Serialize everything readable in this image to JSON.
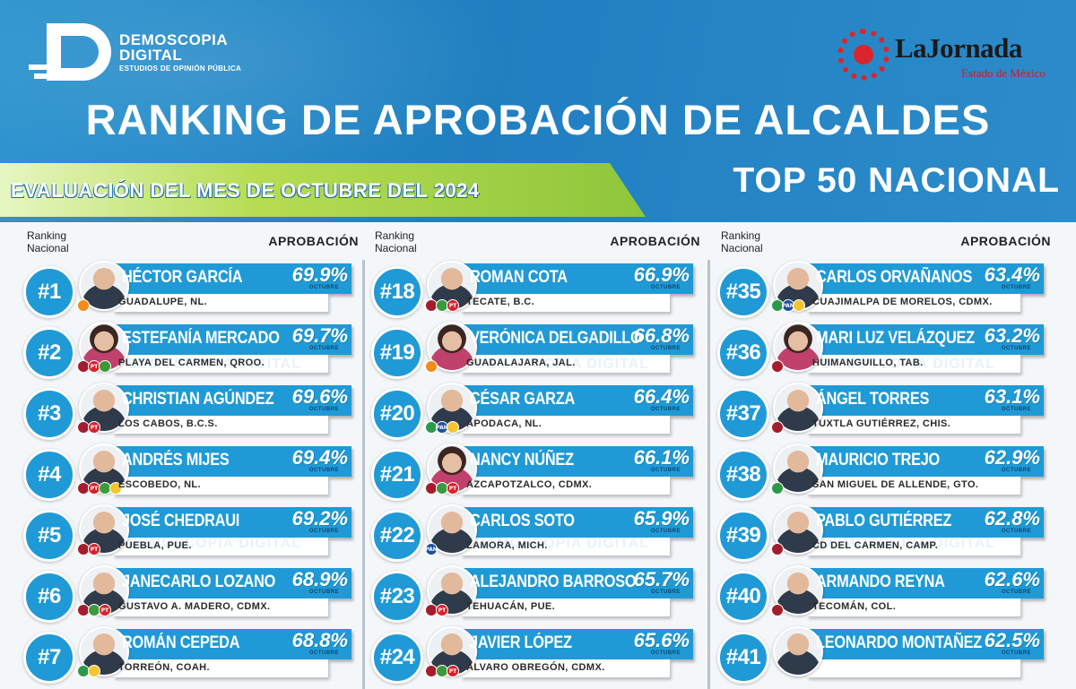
{
  "brand_left": {
    "line1": "DEMOSCOPIA",
    "line2": "DIGITAL",
    "tagline": "ESTUDIOS DE OPINIÓN PÚBLICA"
  },
  "brand_right": {
    "title": "LaJornada",
    "subtitle": "Estado de México"
  },
  "title": "RANKING DE APROBACIÓN DE ALCALDES",
  "evaluation": "EVALUACIÓN DEL MES DE OCTUBRE DEL 2024",
  "top": "TOP 50 NACIONAL",
  "column_header": {
    "ranking_line1": "Ranking",
    "ranking_line2": "Nacional",
    "approval": "APROBACIÓN"
  },
  "watermark": "DEMOSCOPIA DIGITAL",
  "month_tag": "OCTUBRE",
  "colors": {
    "primary_blue": "#1f9ad6",
    "header_blue": "#2a8ccb",
    "green": "#8fc63b",
    "jornada_red": "#d9262c"
  },
  "columns": [
    [
      {
        "rank": "#1",
        "name": "HÉCTOR GARCÍA",
        "pct": "69.9%",
        "location": "GUADALUPE, NL.",
        "parties": [
          "mc"
        ],
        "photo": "m"
      },
      {
        "rank": "#2",
        "name": "ESTEFANÍA MERCADO",
        "pct": "69.7%",
        "location": "PLAYA DEL CARMEN, QROO.",
        "parties": [
          "morena",
          "pt",
          "verde"
        ],
        "photo": "f"
      },
      {
        "rank": "#3",
        "name": "CHRISTIAN AGÚNDEZ",
        "pct": "69.6%",
        "location": "LOS CABOS, B.C.S.",
        "parties": [
          "morena",
          "pt"
        ],
        "photo": "m"
      },
      {
        "rank": "#4",
        "name": "ANDRÉS MIJES",
        "pct": "69.4%",
        "location": "ESCOBEDO, NL.",
        "parties": [
          "morena",
          "pt",
          "verde",
          "prd"
        ],
        "photo": "m"
      },
      {
        "rank": "#5",
        "name": "JOSÉ CHEDRAUI",
        "pct": "69.2%",
        "location": "PUEBLA, PUE.",
        "parties": [
          "morena",
          "pt"
        ],
        "photo": "m"
      },
      {
        "rank": "#6",
        "name": "JANECARLO LOZANO",
        "pct": "68.9%",
        "location": "GUSTAVO A. MADERO, CDMX.",
        "parties": [
          "morena",
          "verde",
          "pt"
        ],
        "photo": "m"
      },
      {
        "rank": "#7",
        "name": "ROMÁN CEPEDA",
        "pct": "68.8%",
        "location": "TORREÓN, COAH.",
        "parties": [
          "pri",
          "prd"
        ],
        "photo": "m"
      }
    ],
    [
      {
        "rank": "#18",
        "name": "ROMAN COTA",
        "pct": "66.9%",
        "location": "TECATE, B.C.",
        "parties": [
          "morena",
          "verde",
          "pt"
        ],
        "photo": "m"
      },
      {
        "rank": "#19",
        "name": "VERÓNICA DELGADILLO",
        "pct": "66.8%",
        "location": "GUADALAJARA, JAL.",
        "parties": [
          "mc"
        ],
        "photo": "f"
      },
      {
        "rank": "#20",
        "name": "CÉSAR GARZA",
        "pct": "66.4%",
        "location": "APODACA, NL.",
        "parties": [
          "pri",
          "pan",
          "prd"
        ],
        "photo": "m"
      },
      {
        "rank": "#21",
        "name": "NANCY NÚÑEZ",
        "pct": "66.1%",
        "location": "AZCAPOTZALCO, CDMX.",
        "parties": [
          "morena",
          "verde",
          "pt"
        ],
        "photo": "f"
      },
      {
        "rank": "#22",
        "name": "CARLOS SOTO",
        "pct": "65.9%",
        "location": "ZAMORA, MICH.",
        "parties": [
          "pan"
        ],
        "photo": "m"
      },
      {
        "rank": "#23",
        "name": "ALEJANDRO BARROSO",
        "pct": "65.7%",
        "location": "TEHUACÁN, PUE.",
        "parties": [
          "morena",
          "pt"
        ],
        "photo": "m"
      },
      {
        "rank": "#24",
        "name": "JAVIER LÓPEZ",
        "pct": "65.6%",
        "location": "ÁLVARO OBREGÓN, CDMX.",
        "parties": [
          "morena",
          "verde",
          "pt"
        ],
        "photo": "m"
      }
    ],
    [
      {
        "rank": "#35",
        "name": "CARLOS ORVAÑANOS",
        "pct": "63.4%",
        "location": "CUAJIMALPA DE MORELOS, CDMX.",
        "parties": [
          "pri",
          "pan",
          "prd"
        ],
        "photo": "m"
      },
      {
        "rank": "#36",
        "name": "MARI LUZ VELÁZQUEZ",
        "pct": "63.2%",
        "location": "HUIMANGUILLO, TAB.",
        "parties": [
          "morena"
        ],
        "photo": "f"
      },
      {
        "rank": "#37",
        "name": "ÁNGEL TORRES",
        "pct": "63.1%",
        "location": "TUXTLA GUTIÉRREZ, CHIS.",
        "parties": [
          "morena"
        ],
        "photo": "m"
      },
      {
        "rank": "#38",
        "name": "MAURICIO TREJO",
        "pct": "62.9%",
        "location": "SAN MIGUEL DE ALLENDE, GTO.",
        "parties": [
          "pri"
        ],
        "photo": "m"
      },
      {
        "rank": "#39",
        "name": "PABLO GUTIÉRREZ",
        "pct": "62.8%",
        "location": "CD DEL CARMEN, CAMP.",
        "parties": [
          "morena"
        ],
        "photo": "m"
      },
      {
        "rank": "#40",
        "name": "ARMANDO REYNA",
        "pct": "62.6%",
        "location": "TECOMÁN, COL.",
        "parties": [
          "morena"
        ],
        "photo": "m"
      },
      {
        "rank": "#41",
        "name": "LEONARDO MONTAÑEZ",
        "pct": "62.5%",
        "location": "",
        "parties": [],
        "photo": "m"
      }
    ]
  ]
}
